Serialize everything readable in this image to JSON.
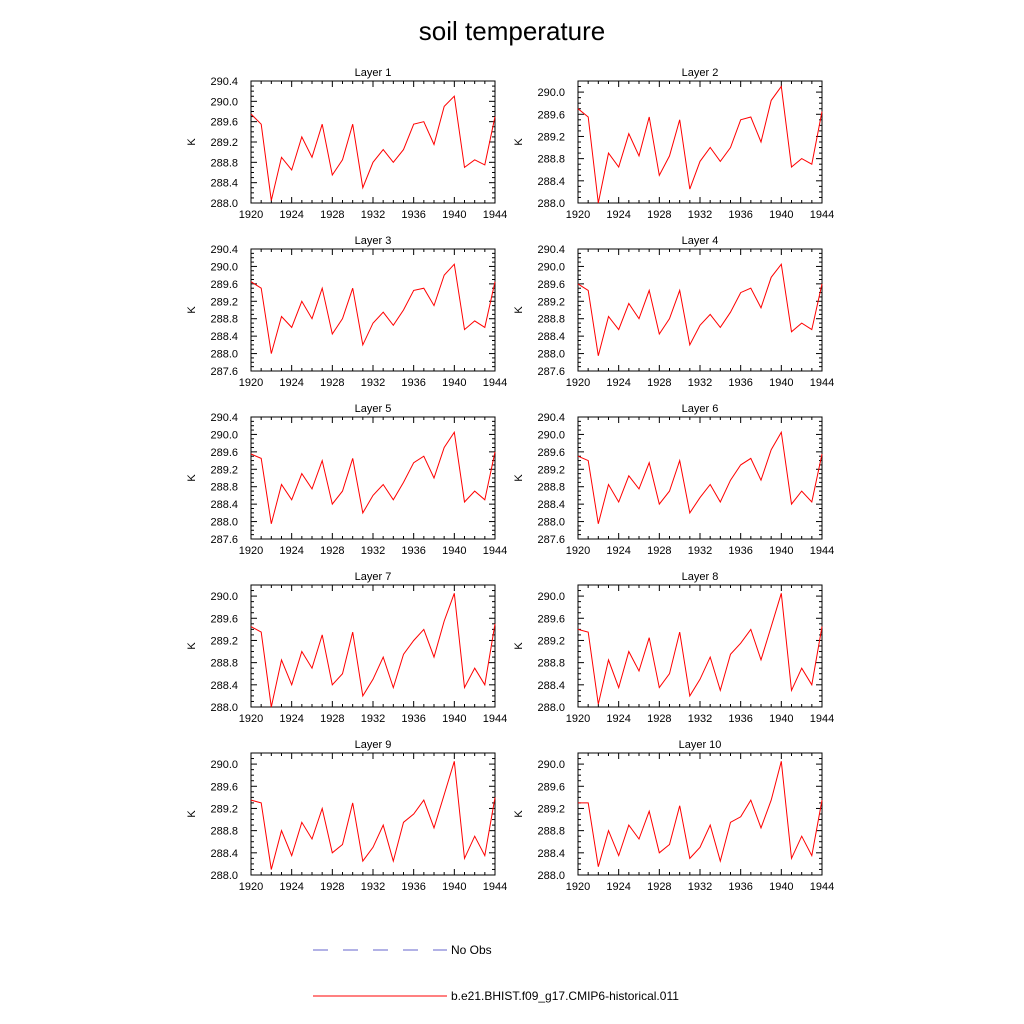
{
  "title": "soil temperature",
  "chart_data": {
    "type": "line",
    "ylabel": "K",
    "x": [
      1920,
      1921,
      1922,
      1923,
      1924,
      1925,
      1926,
      1927,
      1928,
      1929,
      1930,
      1931,
      1932,
      1933,
      1934,
      1935,
      1936,
      1937,
      1938,
      1939,
      1940,
      1941,
      1942,
      1943,
      1944
    ],
    "xticks": [
      1920,
      1924,
      1928,
      1932,
      1936,
      1940,
      1944
    ],
    "xlim": [
      1920,
      1944
    ],
    "series_color": "#ff0000",
    "obs_color": "#6666cc",
    "legend": {
      "placement": "bottom",
      "obs_label": "No Obs",
      "model_label": "b.e21.BHIST.f09_g17.CMIP6-historical.011"
    },
    "panels": [
      {
        "title": "Layer 1",
        "ylim": [
          288.0,
          290.4
        ],
        "yticks": [
          "288.0",
          "288.4",
          "288.8",
          "289.2",
          "289.6",
          "290.0",
          "290.4"
        ],
        "values": [
          289.75,
          289.55,
          288.05,
          288.9,
          288.65,
          289.3,
          288.9,
          289.55,
          288.55,
          288.85,
          289.55,
          288.3,
          288.8,
          289.05,
          288.8,
          289.05,
          289.55,
          289.6,
          289.15,
          289.9,
          290.1,
          288.7,
          288.85,
          288.75,
          289.7
        ]
      },
      {
        "title": "Layer 2",
        "ylim": [
          288.0,
          290.2
        ],
        "yticks": [
          "288.0",
          "288.4",
          "288.8",
          "289.2",
          "289.6",
          "290.0"
        ],
        "values": [
          289.7,
          289.55,
          288.0,
          288.9,
          288.65,
          289.25,
          288.85,
          289.55,
          288.5,
          288.85,
          289.5,
          288.25,
          288.75,
          289.0,
          288.75,
          289.0,
          289.5,
          289.55,
          289.1,
          289.85,
          290.1,
          288.65,
          288.8,
          288.7,
          289.65
        ]
      },
      {
        "title": "Layer 3",
        "ylim": [
          287.6,
          290.4
        ],
        "yticks": [
          "287.6",
          "288.0",
          "288.4",
          "288.8",
          "289.2",
          "289.6",
          "290.0",
          "290.4"
        ],
        "values": [
          289.65,
          289.5,
          288.0,
          288.85,
          288.6,
          289.2,
          288.8,
          289.5,
          288.45,
          288.8,
          289.5,
          288.2,
          288.7,
          288.95,
          288.65,
          289.0,
          289.45,
          289.5,
          289.1,
          289.8,
          290.05,
          288.55,
          288.75,
          288.6,
          289.65
        ]
      },
      {
        "title": "Layer 4",
        "ylim": [
          287.6,
          290.4
        ],
        "yticks": [
          "287.6",
          "288.0",
          "288.4",
          "288.8",
          "289.2",
          "289.6",
          "290.0",
          "290.4"
        ],
        "values": [
          289.6,
          289.45,
          287.95,
          288.85,
          288.55,
          289.15,
          288.8,
          289.45,
          288.45,
          288.8,
          289.45,
          288.2,
          288.65,
          288.9,
          288.6,
          288.95,
          289.4,
          289.5,
          289.05,
          289.75,
          290.05,
          288.5,
          288.7,
          288.55,
          289.6
        ]
      },
      {
        "title": "Layer 5",
        "ylim": [
          287.6,
          290.4
        ],
        "yticks": [
          "287.6",
          "288.0",
          "288.4",
          "288.8",
          "289.2",
          "289.6",
          "290.0",
          "290.4"
        ],
        "values": [
          289.55,
          289.45,
          287.95,
          288.85,
          288.5,
          289.1,
          288.75,
          289.4,
          288.4,
          288.7,
          289.45,
          288.2,
          288.6,
          288.85,
          288.5,
          288.9,
          289.35,
          289.5,
          289.0,
          289.7,
          290.05,
          288.45,
          288.7,
          288.5,
          289.6
        ]
      },
      {
        "title": "Layer 6",
        "ylim": [
          287.6,
          290.4
        ],
        "yticks": [
          "287.6",
          "288.0",
          "288.4",
          "288.8",
          "289.2",
          "289.6",
          "290.0",
          "290.4"
        ],
        "values": [
          289.5,
          289.4,
          287.95,
          288.85,
          288.45,
          289.05,
          288.75,
          289.35,
          288.4,
          288.7,
          289.4,
          288.2,
          288.55,
          288.85,
          288.45,
          288.95,
          289.3,
          289.45,
          288.95,
          289.65,
          290.05,
          288.4,
          288.7,
          288.45,
          289.55
        ]
      },
      {
        "title": "Layer 7",
        "ylim": [
          288.0,
          290.2
        ],
        "yticks": [
          "288.0",
          "288.4",
          "288.8",
          "289.2",
          "289.6",
          "290.0"
        ],
        "values": [
          289.45,
          289.35,
          288.0,
          288.85,
          288.4,
          289.0,
          288.7,
          289.3,
          288.4,
          288.6,
          289.35,
          288.2,
          288.5,
          288.9,
          288.35,
          288.95,
          289.2,
          289.4,
          288.9,
          289.55,
          290.05,
          288.35,
          288.7,
          288.4,
          289.5
        ]
      },
      {
        "title": "Layer 8",
        "ylim": [
          288.0,
          290.2
        ],
        "yticks": [
          "288.0",
          "288.4",
          "288.8",
          "289.2",
          "289.6",
          "290.0"
        ],
        "values": [
          289.4,
          289.35,
          288.05,
          288.85,
          288.35,
          289.0,
          288.65,
          289.25,
          288.35,
          288.6,
          289.35,
          288.2,
          288.5,
          288.9,
          288.3,
          288.95,
          289.15,
          289.4,
          288.85,
          289.45,
          290.05,
          288.3,
          288.7,
          288.4,
          289.45
        ]
      },
      {
        "title": "Layer 9",
        "ylim": [
          288.0,
          290.2
        ],
        "yticks": [
          "288.0",
          "288.4",
          "288.8",
          "289.2",
          "289.6",
          "290.0"
        ],
        "values": [
          289.35,
          289.3,
          288.1,
          288.8,
          288.35,
          288.95,
          288.65,
          289.2,
          288.4,
          288.55,
          289.3,
          288.25,
          288.5,
          288.9,
          288.25,
          288.95,
          289.1,
          289.35,
          288.85,
          289.45,
          290.05,
          288.3,
          288.7,
          288.35,
          289.4
        ]
      },
      {
        "title": "Layer 10",
        "ylim": [
          288.0,
          290.2
        ],
        "yticks": [
          "288.0",
          "288.4",
          "288.8",
          "289.2",
          "289.6",
          "290.0"
        ],
        "values": [
          289.3,
          289.3,
          288.15,
          288.8,
          288.35,
          288.9,
          288.65,
          289.15,
          288.4,
          288.55,
          289.25,
          288.3,
          288.5,
          288.9,
          288.25,
          288.95,
          289.05,
          289.35,
          288.85,
          289.35,
          290.05,
          288.3,
          288.7,
          288.35,
          289.35
        ]
      }
    ]
  }
}
